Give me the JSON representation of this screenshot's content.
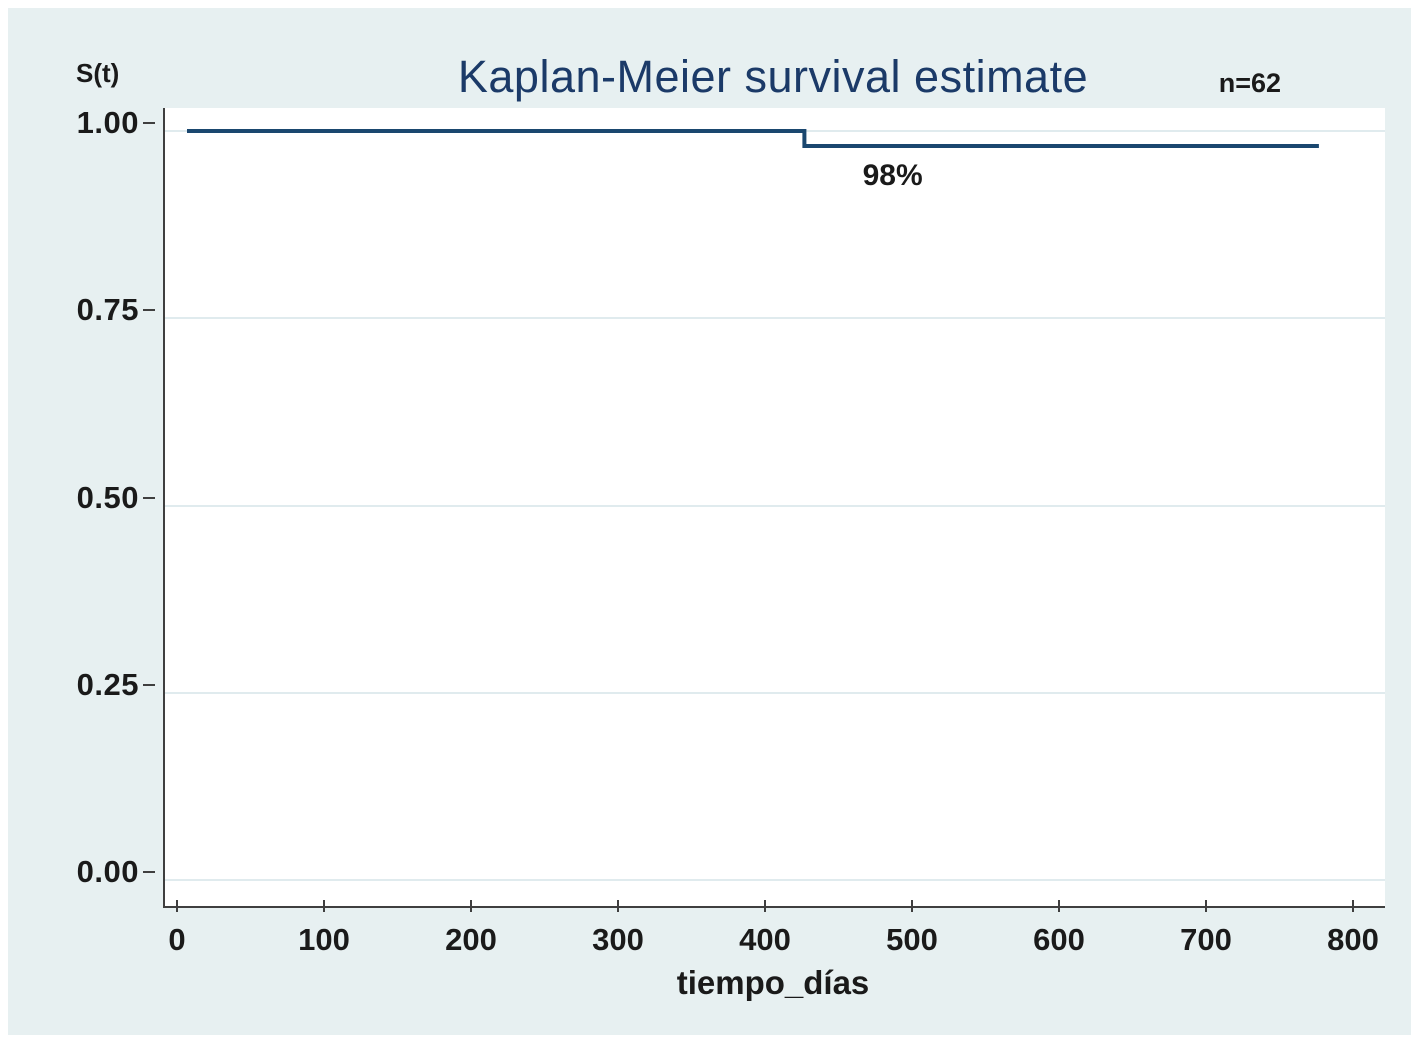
{
  "figure": {
    "background": "#e7f0f1",
    "plot_background": "#ffffff",
    "grid_color": "#e0ebee",
    "axis_color": "#3f3f3f",
    "curve_color": "#1a476f",
    "title_color": "#1b3a68",
    "text_color": "#1a1a1a"
  },
  "chart_data": {
    "type": "line",
    "subtype": "kaplan-meier-step",
    "title": "Kaplan-Meier survival estimate",
    "xlabel": "tiempo_días",
    "ylabel": "S(t)",
    "sample_size_label": "n=62",
    "xlim": [
      0,
      800
    ],
    "ylim": [
      0,
      1
    ],
    "grid": true,
    "legend": false,
    "xticks": [
      {
        "v": 0,
        "label": "0"
      },
      {
        "v": 100,
        "label": "100"
      },
      {
        "v": 200,
        "label": "200"
      },
      {
        "v": 300,
        "label": "300"
      },
      {
        "v": 400,
        "label": "400"
      },
      {
        "v": 500,
        "label": "500"
      },
      {
        "v": 600,
        "label": "600"
      },
      {
        "v": 700,
        "label": "700"
      },
      {
        "v": 800,
        "label": "800"
      }
    ],
    "yticks": [
      {
        "v": 1.0,
        "label": "1.00"
      },
      {
        "v": 0.75,
        "label": "0.75"
      },
      {
        "v": 0.5,
        "label": "0.50"
      },
      {
        "v": 0.25,
        "label": "0.25"
      },
      {
        "v": 0.0,
        "label": "0.00"
      }
    ],
    "series": [
      {
        "name": "survival-estimate",
        "points": [
          [
            0,
            1.0
          ],
          [
            420,
            1.0
          ],
          [
            420,
            0.98
          ],
          [
            770,
            0.98
          ]
        ]
      }
    ],
    "annotations": [
      {
        "text": "98%",
        "x": 480,
        "y": 0.94
      }
    ]
  }
}
